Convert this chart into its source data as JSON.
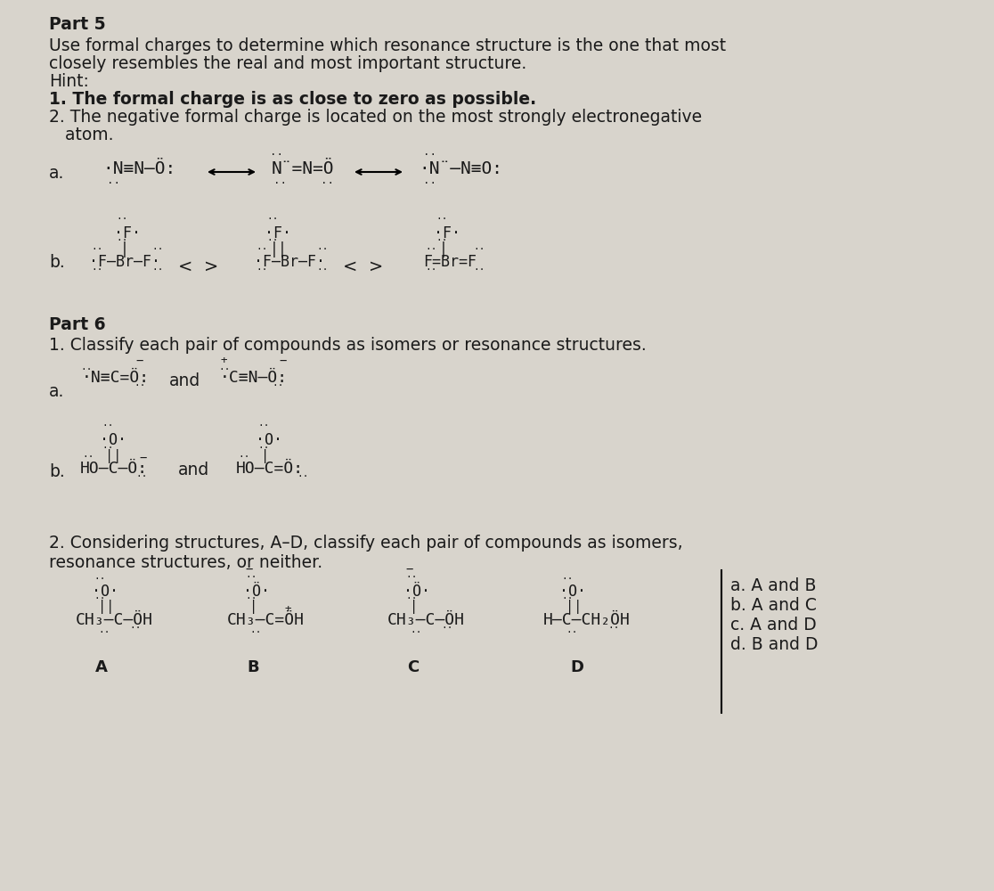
{
  "bg_color": "#d8d4cc",
  "title_part5": "Part 5",
  "line1": "Use formal charges to determine which resonance structure is the one that most",
  "line2": "closely resembles the real and most important structure.",
  "line3": "Hint:",
  "line4_bold": "1. The formal charge is as close to zero as possible.",
  "line5": "2. The negative formal charge is located on the most strongly electronegative",
  "line6": "   atom.",
  "part6_title": "Part 6",
  "part6_line1": "1. Classify each pair of compounds as isomers or resonance structures.",
  "part6_2line1": "2. Considering structures, A–D, classify each pair of compounds as isomers,",
  "part6_2line2": "resonance structures, or neither.",
  "answers_a": "a. A and B",
  "answers_b": "b. A and C",
  "answers_c": "c. A and D",
  "answers_d": "d. B and D",
  "label_a_part5": "a.",
  "label_b_part5": "b.",
  "label_a_part6": "a.",
  "label_b_part6": "b.",
  "struct_A_label": "A",
  "struct_B_label": "B",
  "struct_C_label": "C",
  "struct_D_label": "D"
}
